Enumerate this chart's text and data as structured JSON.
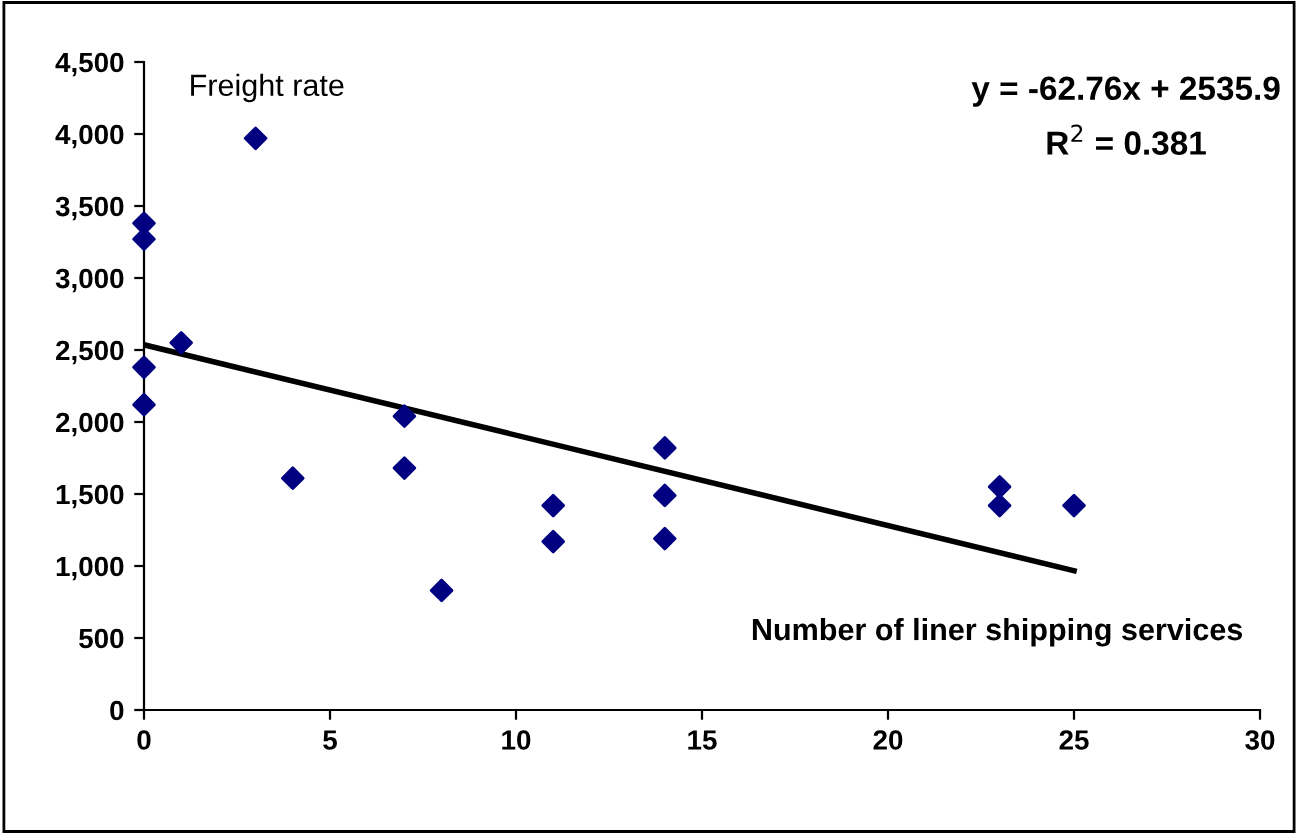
{
  "chart_data": {
    "type": "scatter",
    "xlabel": "Number of liner shipping services",
    "ylabel": "Freight rate",
    "annotations": [
      "y = -62.76x + 2535.9",
      "R$^{2}$ = 0.381"
    ],
    "series": [
      {
        "color": "#000080",
        "marker": "diamond",
        "x": [
          0,
          0,
          3,
          0,
          0,
          1,
          4,
          7,
          7,
          8,
          11,
          11,
          14,
          14,
          14,
          23,
          23,
          25
        ],
        "values": [
          3380,
          3270,
          3970,
          2380,
          2120,
          2550,
          1610,
          2040,
          1680,
          830,
          1420,
          1170,
          1820,
          1490,
          1190,
          1550,
          1420,
          1420
        ]
      },
      {
        "type": "line",
        "color": "#000000",
        "marker": "none",
        "x": [
          0,
          25
        ],
        "values": [
          2536,
          967
        ]
      }
    ],
    "xlim": [
      0,
      30
    ],
    "xticks": [
      0,
      5,
      10,
      15,
      20,
      25,
      30
    ],
    "ylim": [
      0,
      4500
    ],
    "yticks": [
      {
        "value": 0,
        "label": "0"
      },
      {
        "value": 500,
        "label": "500"
      },
      {
        "value": 1000,
        "label": "1,000"
      },
      {
        "value": 1500,
        "label": "1,500"
      },
      {
        "value": 2000,
        "label": "2,000"
      },
      {
        "value": 2500,
        "label": "2,500"
      },
      {
        "value": 3000,
        "label": "3,000"
      },
      {
        "value": 3500,
        "label": "3,500"
      },
      {
        "value": 4000,
        "label": "4,000"
      },
      {
        "value": 4500,
        "label": "4,500"
      }
    ],
    "grid": false,
    "legend": false
  }
}
